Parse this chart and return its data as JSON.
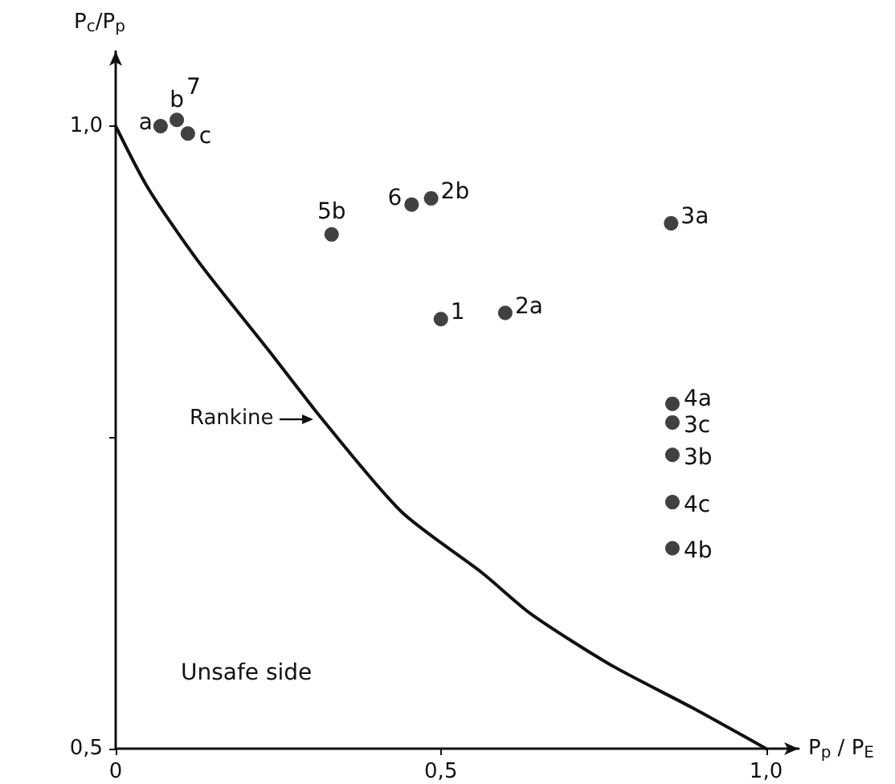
{
  "chart_data": {
    "type": "scatter",
    "xlabel": "P$_{p}$ / P$_{E}$",
    "ylabel": "P$_{c}$/P$_{p}$",
    "xlim": [
      0,
      1.05
    ],
    "ylim": [
      0.5,
      1.06
    ],
    "xticks": [
      0,
      {
        "value": 0.5,
        "label": "0,5"
      },
      {
        "value": 1.0,
        "label": "1,0"
      }
    ],
    "yticks": [
      {
        "value": 0.5,
        "label": "0,5"
      },
      {
        "value": 0.75,
        "label": null
      },
      {
        "value": 1.0,
        "label": "1,0"
      }
    ],
    "grid": false,
    "marker": "circle",
    "series": [
      {
        "color": "#111111",
        "x": [
          0.069,
          0.094,
          0.111,
          0.332,
          0.455,
          0.485,
          0.854,
          0.5,
          0.599,
          0.856,
          0.856,
          0.856,
          0.856,
          0.856
        ],
        "values": [
          1.0,
          1.005,
          0.994,
          0.913,
          0.937,
          0.942,
          0.922,
          0.845,
          0.85,
          0.777,
          0.762,
          0.736,
          0.698,
          0.661
        ]
      },
      {
        "type": "line",
        "name": "Rankine",
        "color": "#111111",
        "marker": "none",
        "line_style": "solid",
        "x": [
          0,
          0.05,
          0.126,
          0.235,
          0.317,
          0.44,
          0.564,
          0.639,
          0.762,
          0.886,
          1.0
        ],
        "values": [
          1.0,
          0.95,
          0.892,
          0.82,
          0.765,
          0.69,
          0.641,
          0.608,
          0.567,
          0.533,
          0.5
        ]
      }
    ],
    "annotations": [
      {
        "text": "a",
        "x": 0.069,
        "y": 1.0
      },
      {
        "text": "b",
        "x": 0.094,
        "y": 1.005
      },
      {
        "text": "7",
        "x": 0.094,
        "y": 1.005
      },
      {
        "text": "c",
        "x": 0.111,
        "y": 0.994
      },
      {
        "text": "5b",
        "x": 0.332,
        "y": 0.913
      },
      {
        "text": "6",
        "x": 0.455,
        "y": 0.937
      },
      {
        "text": "2b",
        "x": 0.485,
        "y": 0.942
      },
      {
        "text": "3a",
        "x": 0.854,
        "y": 0.922
      },
      {
        "text": "1",
        "x": 0.5,
        "y": 0.845
      },
      {
        "text": "2a",
        "x": 0.599,
        "y": 0.85
      },
      {
        "text": "4a",
        "x": 0.856,
        "y": 0.777
      },
      {
        "text": "3c",
        "x": 0.856,
        "y": 0.762
      },
      {
        "text": "3b",
        "x": 0.856,
        "y": 0.736
      },
      {
        "text": "4c",
        "x": 0.856,
        "y": 0.698
      },
      {
        "text": "4b",
        "x": 0.856,
        "y": 0.661
      },
      "Unsafe side"
    ]
  }
}
